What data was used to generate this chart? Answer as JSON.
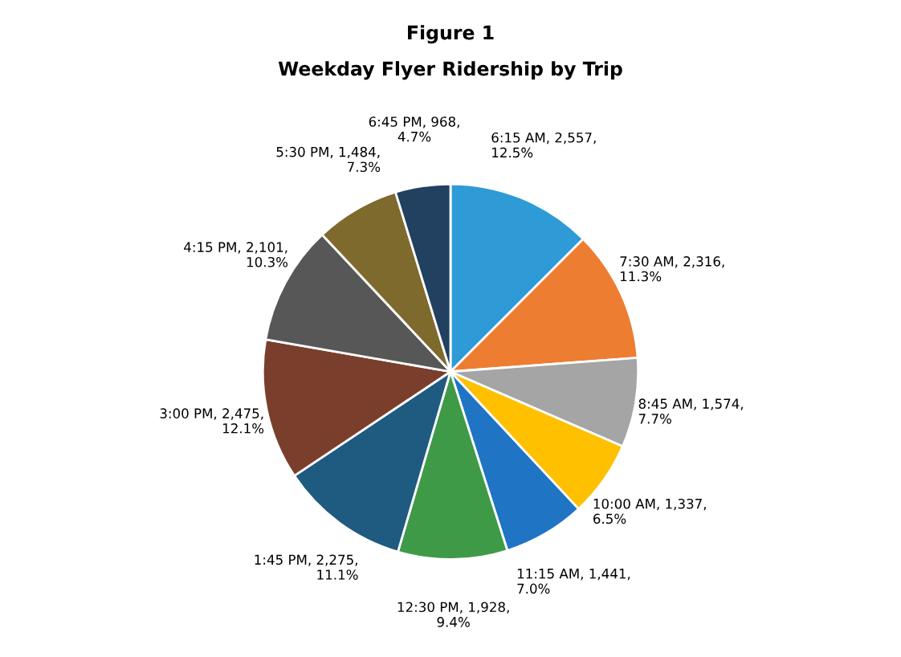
{
  "chart_data": {
    "type": "pie",
    "title": "Figure 1",
    "subtitle": "Weekday Flyer Ridership by Trip",
    "categories": [
      "6:15 AM",
      "7:30 AM",
      "8:45 AM",
      "10:00 AM",
      "11:15 AM",
      "12:30 PM",
      "1:45 PM",
      "3:00 PM",
      "4:15 PM",
      "5:30 PM",
      "6:45 PM"
    ],
    "values": [
      2557,
      2316,
      1574,
      1337,
      1441,
      1928,
      2275,
      2475,
      2101,
      1484,
      968
    ],
    "value_labels": [
      "2,557, 12.5%",
      "2,316, 11.3%",
      "1,574, 7.7%",
      "1,337, 6.5%",
      "1,441, 7.0%",
      "1,928, 9.4%",
      "2,275, 11.1%",
      "2,475, 12.1%",
      "2,101, 10.3%",
      "1,484, 7.3%",
      "968, 4.7%"
    ],
    "colors": [
      "#2e9bd6",
      "#ed7d31",
      "#a5a5a5",
      "#ffc000",
      "#1f74c4",
      "#3f9a47",
      "#1f5a80",
      "#7a3f2c",
      "#575757",
      "#7f6a2e",
      "#22405f"
    ],
    "legend": false
  }
}
